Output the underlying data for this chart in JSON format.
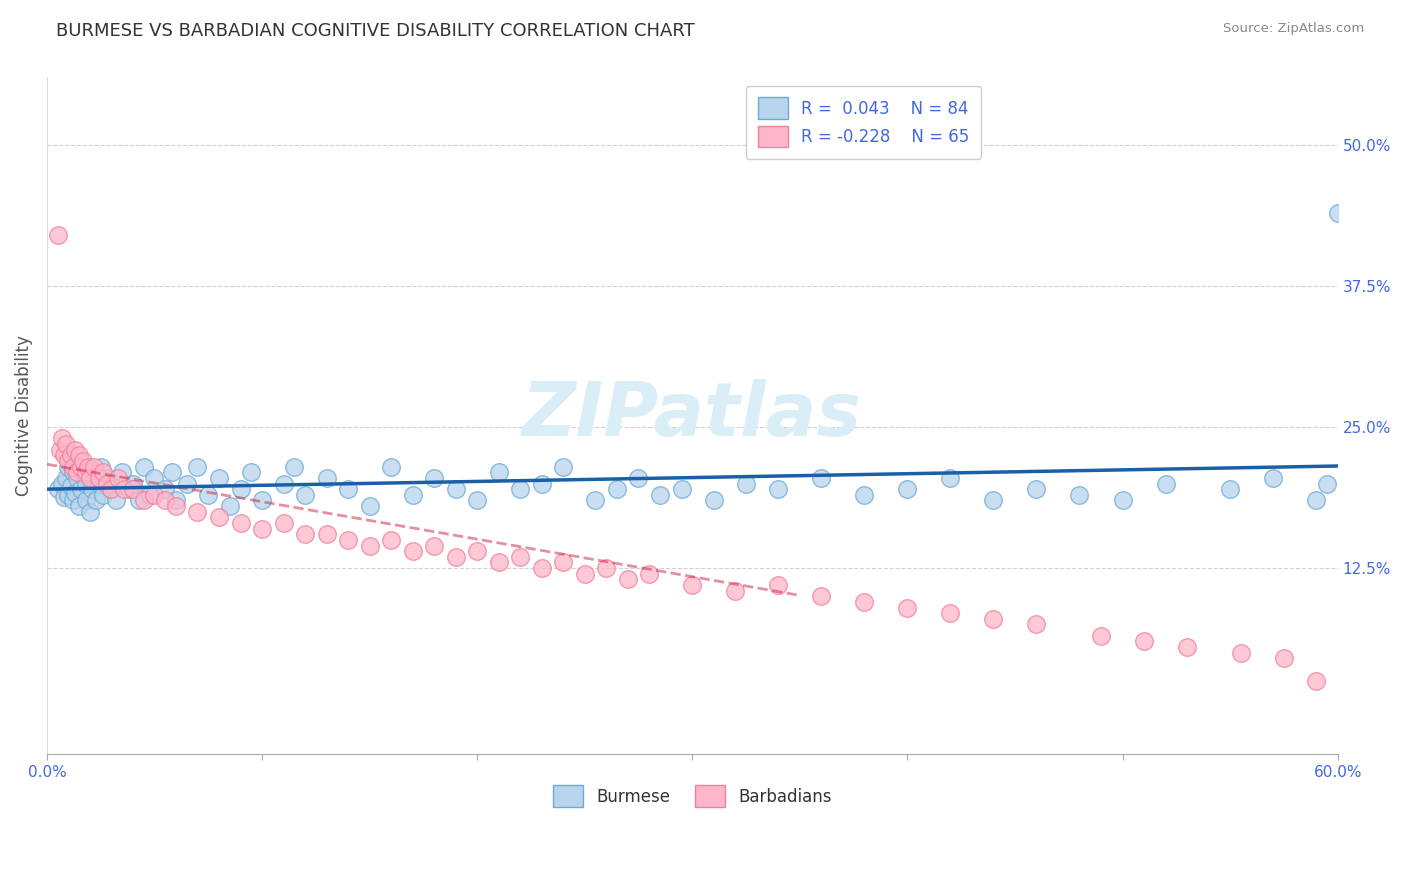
{
  "title": "BURMESE VS BARBADIAN COGNITIVE DISABILITY CORRELATION CHART",
  "source": "Source: ZipAtlas.com",
  "xlabel_burmese": "Burmese",
  "xlabel_barbadian": "Barbadians",
  "ylabel": "Cognitive Disability",
  "xlim": [
    0.0,
    0.6
  ],
  "ylim": [
    -0.04,
    0.56
  ],
  "xtick_vals": [
    0.0,
    0.1,
    0.2,
    0.3,
    0.4,
    0.5,
    0.6
  ],
  "xtick_labels_show": [
    "0.0%",
    "",
    "",
    "",
    "",
    "",
    "60.0%"
  ],
  "ytick_vals": [
    0.0,
    0.125,
    0.25,
    0.375,
    0.5
  ],
  "ytick_labels": [
    "",
    "12.5%",
    "25.0%",
    "37.5%",
    "50.0%"
  ],
  "blue_R": 0.043,
  "blue_N": 84,
  "pink_R": -0.228,
  "pink_N": 65,
  "blue_scatter_face": "#b8d4ec",
  "blue_scatter_edge": "#6aaad4",
  "pink_scatter_face": "#ffb6c8",
  "pink_scatter_edge": "#f080a0",
  "blue_line_color": "#1a5fa8",
  "pink_line_color": "#cc2244",
  "grid_color": "#cccccc",
  "title_color": "#333333",
  "axis_label_color": "#555555",
  "right_tick_color": "#4169e1",
  "legend_text_color": "#4169e1",
  "bottom_legend_color": "#333333",
  "watermark_text": "ZIPatlas",
  "watermark_color": "#daeef8",
  "bg_color": "#ffffff",
  "burmese_x": [
    0.005,
    0.007,
    0.008,
    0.009,
    0.01,
    0.01,
    0.011,
    0.012,
    0.012,
    0.013,
    0.014,
    0.015,
    0.015,
    0.016,
    0.017,
    0.018,
    0.018,
    0.019,
    0.02,
    0.02,
    0.021,
    0.022,
    0.023,
    0.024,
    0.025,
    0.026,
    0.028,
    0.03,
    0.032,
    0.035,
    0.038,
    0.04,
    0.043,
    0.045,
    0.048,
    0.05,
    0.055,
    0.058,
    0.06,
    0.065,
    0.07,
    0.075,
    0.08,
    0.085,
    0.09,
    0.095,
    0.1,
    0.11,
    0.115,
    0.12,
    0.13,
    0.14,
    0.15,
    0.16,
    0.17,
    0.18,
    0.19,
    0.2,
    0.21,
    0.22,
    0.23,
    0.24,
    0.255,
    0.265,
    0.275,
    0.285,
    0.295,
    0.31,
    0.325,
    0.34,
    0.36,
    0.38,
    0.4,
    0.42,
    0.44,
    0.46,
    0.48,
    0.5,
    0.52,
    0.55,
    0.57,
    0.59,
    0.595,
    0.6
  ],
  "burmese_y": [
    0.195,
    0.2,
    0.188,
    0.205,
    0.19,
    0.215,
    0.198,
    0.185,
    0.21,
    0.192,
    0.205,
    0.18,
    0.22,
    0.195,
    0.21,
    0.185,
    0.2,
    0.215,
    0.175,
    0.205,
    0.195,
    0.21,
    0.185,
    0.2,
    0.215,
    0.19,
    0.205,
    0.195,
    0.185,
    0.21,
    0.195,
    0.2,
    0.185,
    0.215,
    0.19,
    0.205,
    0.195,
    0.21,
    0.185,
    0.2,
    0.215,
    0.19,
    0.205,
    0.18,
    0.195,
    0.21,
    0.185,
    0.2,
    0.215,
    0.19,
    0.205,
    0.195,
    0.18,
    0.215,
    0.19,
    0.205,
    0.195,
    0.185,
    0.21,
    0.195,
    0.2,
    0.215,
    0.185,
    0.195,
    0.205,
    0.19,
    0.195,
    0.185,
    0.2,
    0.195,
    0.205,
    0.19,
    0.195,
    0.205,
    0.185,
    0.195,
    0.19,
    0.185,
    0.2,
    0.195,
    0.205,
    0.185,
    0.2,
    0.44
  ],
  "barbadian_x": [
    0.005,
    0.006,
    0.007,
    0.008,
    0.009,
    0.01,
    0.011,
    0.012,
    0.013,
    0.014,
    0.015,
    0.016,
    0.017,
    0.018,
    0.019,
    0.02,
    0.022,
    0.024,
    0.026,
    0.028,
    0.03,
    0.033,
    0.036,
    0.04,
    0.045,
    0.05,
    0.055,
    0.06,
    0.07,
    0.08,
    0.09,
    0.1,
    0.11,
    0.12,
    0.13,
    0.14,
    0.15,
    0.16,
    0.17,
    0.18,
    0.19,
    0.2,
    0.21,
    0.22,
    0.23,
    0.24,
    0.25,
    0.26,
    0.27,
    0.28,
    0.3,
    0.32,
    0.34,
    0.36,
    0.38,
    0.4,
    0.42,
    0.44,
    0.46,
    0.49,
    0.51,
    0.53,
    0.555,
    0.575,
    0.59
  ],
  "barbadian_y": [
    0.42,
    0.23,
    0.24,
    0.225,
    0.235,
    0.22,
    0.225,
    0.215,
    0.23,
    0.21,
    0.225,
    0.215,
    0.22,
    0.21,
    0.215,
    0.205,
    0.215,
    0.205,
    0.21,
    0.2,
    0.195,
    0.205,
    0.195,
    0.195,
    0.185,
    0.19,
    0.185,
    0.18,
    0.175,
    0.17,
    0.165,
    0.16,
    0.165,
    0.155,
    0.155,
    0.15,
    0.145,
    0.15,
    0.14,
    0.145,
    0.135,
    0.14,
    0.13,
    0.135,
    0.125,
    0.13,
    0.12,
    0.125,
    0.115,
    0.12,
    0.11,
    0.105,
    0.11,
    0.1,
    0.095,
    0.09,
    0.085,
    0.08,
    0.075,
    0.065,
    0.06,
    0.055,
    0.05,
    0.045,
    0.025
  ]
}
